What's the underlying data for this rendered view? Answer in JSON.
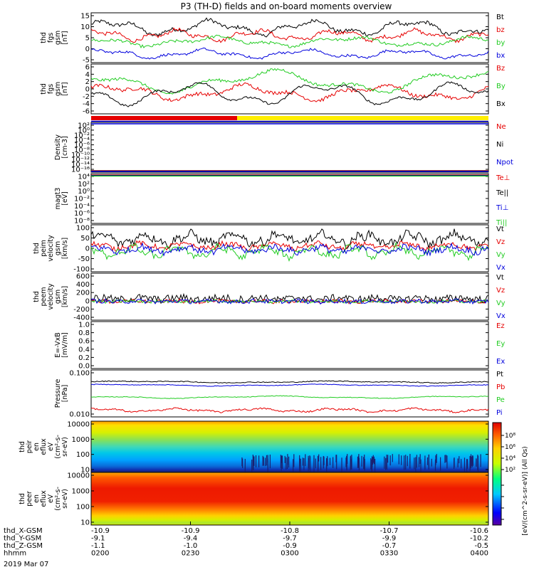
{
  "title": "P3 (TH-D) fields and on-board moments overview",
  "date_label": "2019 Mar 07",
  "colorbar_label": "[eV/(cm^2-s-sr-eV)] (All Qs)",
  "colorbar_ticks": [
    "10⁸",
    "10⁶",
    "10⁴",
    "10²"
  ],
  "xaxis": {
    "rows": [
      {
        "label": "thd_X-GSM",
        "values": [
          "-10.9",
          "-10.9",
          "-10.8",
          "-10.7",
          "-10.6"
        ]
      },
      {
        "label": "thd_Y-GSM",
        "values": [
          "-9.1",
          "-9.4",
          "-9.7",
          "-9.9",
          "-10.2"
        ]
      },
      {
        "label": "thd_Z-GSM",
        "values": [
          "-1.1",
          "-1.0",
          "-0.9",
          "-0.7",
          "-0.5"
        ]
      },
      {
        "label": "hhmm",
        "values": [
          "0200",
          "0230",
          "0300",
          "0330",
          "0400"
        ]
      }
    ]
  },
  "colors": {
    "black": "#000000",
    "red": "#e60000",
    "green": "#22cc22",
    "blue": "#0000dd",
    "yellow": "#ffee00"
  },
  "chart_data": [
    {
      "id": "fgs_gsm",
      "type": "line",
      "ylabel": [
        "thd",
        "fgs",
        "gsm",
        "[nT]"
      ],
      "ticks": [
        "15",
        "10",
        "5",
        "0",
        "-5"
      ],
      "ylim": [
        -5,
        15
      ],
      "series": [
        {
          "name": "Bt",
          "color": "#000000"
        },
        {
          "name": "bz",
          "color": "#e60000"
        },
        {
          "name": "by",
          "color": "#22cc22"
        },
        {
          "name": "bx",
          "color": "#0000dd"
        }
      ]
    },
    {
      "id": "fgs_gsm_small",
      "type": "line",
      "ylabel": [
        "thd",
        "fgs",
        "gsm",
        "[nT]"
      ],
      "ticks": [
        "6",
        "4",
        "2",
        "0",
        "-2",
        "-4",
        "-6"
      ],
      "ylim": [
        -7,
        6.5
      ],
      "series": [
        {
          "name": "Bz",
          "color": "#e60000"
        },
        {
          "name": "By",
          "color": "#22cc22"
        },
        {
          "name": "Bx",
          "color": "#000000"
        }
      ]
    },
    {
      "id": "density",
      "type": "line",
      "ylabel": [
        "Density",
        "[cm-3]"
      ],
      "ticks": [
        "10²",
        "10⁰",
        "10⁻²",
        "10⁻⁴",
        "10⁻⁶",
        "10⁻⁸",
        "10⁻¹⁰",
        "10⁻¹²",
        "10⁻¹⁴",
        "10⁻¹⁶"
      ],
      "series": [
        {
          "name": "Ne",
          "color": "#e60000"
        },
        {
          "name": "Ni",
          "color": "#000000"
        },
        {
          "name": "Npot",
          "color": "#0000dd"
        }
      ]
    },
    {
      "id": "temperature",
      "type": "line",
      "ylabel": [
        "magt3",
        "[eV]"
      ],
      "ticks": [
        "10⁴",
        "10²",
        "10⁰",
        "10⁻²",
        "10⁻⁴",
        "10⁻⁶",
        "10⁻⁸"
      ],
      "series": [
        {
          "name": "Te⊥",
          "color": "#e60000"
        },
        {
          "name": "Te||",
          "color": "#000000"
        },
        {
          "name": "Ti⊥",
          "color": "#0000dd"
        },
        {
          "name": "Ti||",
          "color": "#22cc22"
        }
      ]
    },
    {
      "id": "ion_velocity",
      "type": "line",
      "ylabel": [
        "thd",
        "peim",
        "velocity",
        "gsm",
        "[km/s]"
      ],
      "ticks": [
        "100",
        "50",
        "0",
        "-50",
        "-100"
      ],
      "ylim": [
        -100,
        100
      ],
      "series": [
        {
          "name": "Vt",
          "color": "#000000"
        },
        {
          "name": "Vz",
          "color": "#e60000"
        },
        {
          "name": "Vy",
          "color": "#22cc22"
        },
        {
          "name": "Vx",
          "color": "#0000dd"
        }
      ]
    },
    {
      "id": "electron_velocity",
      "type": "line",
      "ylabel": [
        "thd",
        "peem",
        "velocity",
        "gsm",
        "[km/s]"
      ],
      "ticks": [
        "600",
        "400",
        "200",
        "0",
        "-200",
        "-400"
      ],
      "ylim": [
        -400,
        600
      ],
      "series": [
        {
          "name": "Vt",
          "color": "#000000"
        },
        {
          "name": "Vz",
          "color": "#e60000"
        },
        {
          "name": "Vy",
          "color": "#22cc22"
        },
        {
          "name": "Vx",
          "color": "#0000dd"
        }
      ]
    },
    {
      "id": "efield",
      "type": "line",
      "ylabel": [
        "E=-VxB",
        "[mV/m]"
      ],
      "ticks": [
        "1.0",
        "0.8",
        "0.6",
        "0.4",
        "0.2",
        "0.0"
      ],
      "ylim": [
        0,
        1
      ],
      "series": [
        {
          "name": "Ez",
          "color": "#e60000"
        },
        {
          "name": "Ey",
          "color": "#22cc22"
        },
        {
          "name": "Ex",
          "color": "#0000dd"
        }
      ]
    },
    {
      "id": "pressure",
      "type": "line",
      "ylabel": [
        "Pressure",
        "[nPa]"
      ],
      "ticks": [
        "0.100",
        "0.010"
      ],
      "series": [
        {
          "name": "Pt",
          "color": "#000000"
        },
        {
          "name": "Pb",
          "color": "#e60000"
        },
        {
          "name": "Pe",
          "color": "#22cc22"
        },
        {
          "name": "Pi",
          "color": "#0000dd"
        }
      ]
    },
    {
      "id": "ion_spectrogram",
      "type": "heatmap",
      "ylabel": [
        "thd",
        "peir",
        "en",
        "eflux",
        "eV",
        "(cm²-s-",
        "sr-eV)"
      ],
      "ticks": [
        "10000",
        "1000",
        "100",
        "10"
      ]
    },
    {
      "id": "electron_spectrogram",
      "type": "heatmap",
      "ylabel": [
        "thd",
        "peer",
        "en",
        "eflux",
        "eV",
        "(cm²-s-",
        "sr-eV)"
      ],
      "ticks": [
        "10000",
        "1000",
        "100",
        "10"
      ]
    }
  ]
}
